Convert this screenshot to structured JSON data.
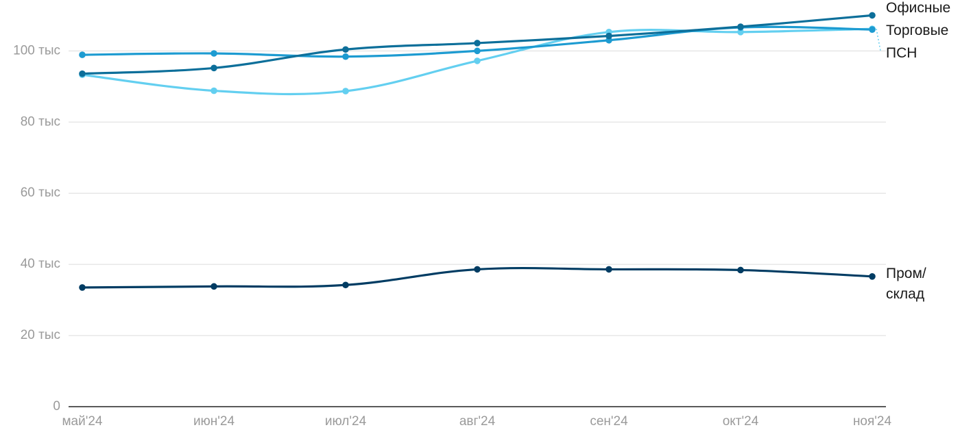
{
  "chart_data": {
    "type": "line",
    "categories": [
      "май'24",
      "июн'24",
      "июл'24",
      "авг'24",
      "сен'24",
      "окт'24",
      "ноя'24"
    ],
    "y_ticks": [
      {
        "value": 0,
        "label": "0"
      },
      {
        "value": 20000,
        "label": "20 тыс"
      },
      {
        "value": 40000,
        "label": "40 тыс"
      },
      {
        "value": 60000,
        "label": "60 тыс"
      },
      {
        "value": 80000,
        "label": "80 тыс"
      },
      {
        "value": 100000,
        "label": "100 тыс"
      }
    ],
    "ylim": [
      0,
      112000
    ],
    "grid": true,
    "legend": "inline labels at right end of each line",
    "series": [
      {
        "name": "Офисные",
        "color": "#0d6f9a",
        "values": [
          93600,
          95200,
          100400,
          102200,
          104200,
          106800,
          110000
        ]
      },
      {
        "name": "Торговые",
        "color": "#1d9bd1",
        "values": [
          98900,
          99300,
          98400,
          100000,
          103000,
          106600,
          106000
        ]
      },
      {
        "name": "ПСН",
        "color": "#63cff0",
        "values": [
          93300,
          88800,
          88700,
          97200,
          105300,
          105300,
          106200
        ]
      },
      {
        "name": "Пром/\nсклад",
        "color": "#003c63",
        "values": [
          33500,
          33800,
          34200,
          38600,
          38600,
          38400,
          36600
        ]
      }
    ]
  }
}
